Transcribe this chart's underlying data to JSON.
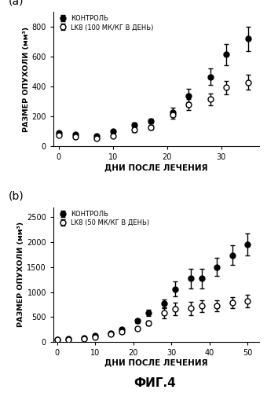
{
  "panel_a": {
    "label": "(a)",
    "control": {
      "x": [
        0,
        3,
        7,
        10,
        14,
        17,
        21,
        24,
        28,
        31,
        35
      ],
      "y": [
        90,
        80,
        70,
        100,
        145,
        170,
        230,
        340,
        465,
        615,
        720
      ],
      "yerr": [
        10,
        8,
        8,
        12,
        15,
        18,
        30,
        45,
        55,
        70,
        80
      ],
      "label": "КОНТРОЛЬ"
    },
    "lk8": {
      "x": [
        0,
        3,
        7,
        10,
        14,
        17,
        21,
        24,
        28,
        31,
        35
      ],
      "y": [
        75,
        65,
        55,
        70,
        110,
        130,
        210,
        280,
        315,
        395,
        430
      ],
      "yerr": [
        8,
        8,
        7,
        10,
        12,
        15,
        25,
        35,
        40,
        45,
        50
      ],
      "label": "LK8 (100 МК/КГ В ДЕНЬ)"
    },
    "ylabel": "РАЗМЕР ОПУХОЛИ (мм³)",
    "xlabel": "ДНИ ПОСЛЕ ЛЕЧЕНИЯ",
    "ylim": [
      0,
      900
    ],
    "xlim": [
      -1,
      37
    ],
    "yticks": [
      0,
      200,
      400,
      600,
      800
    ],
    "xticks": [
      0,
      10,
      20,
      30
    ]
  },
  "panel_b": {
    "label": "(b)",
    "control": {
      "x": [
        0,
        3,
        7,
        10,
        14,
        17,
        21,
        24,
        28,
        31,
        35,
        38,
        42,
        46,
        50
      ],
      "y": [
        50,
        60,
        80,
        120,
        180,
        250,
        420,
        580,
        770,
        1060,
        1270,
        1270,
        1500,
        1740,
        1960
      ],
      "yerr": [
        10,
        10,
        12,
        15,
        20,
        25,
        40,
        60,
        80,
        150,
        200,
        200,
        180,
        200,
        220
      ],
      "label": "КОНТРОЛЬ"
    },
    "lk8": {
      "x": [
        0,
        3,
        7,
        10,
        14,
        17,
        21,
        24,
        28,
        31,
        35,
        38,
        42,
        46,
        50
      ],
      "y": [
        45,
        55,
        70,
        100,
        150,
        200,
        270,
        380,
        580,
        660,
        670,
        720,
        730,
        790,
        820
      ],
      "yerr": [
        8,
        8,
        10,
        12,
        18,
        22,
        35,
        50,
        100,
        130,
        130,
        120,
        110,
        110,
        120
      ],
      "label": "LK8 (50 МК/КГ В ДЕНЬ)"
    },
    "ylabel": "РАЗМЕР ОПУХОЛИ (мм³)",
    "xlabel": "ДНИ ПОСЛЕ ЛЕЧЕНИЯ",
    "ylim": [
      0,
      2700
    ],
    "xlim": [
      -1,
      53
    ],
    "yticks": [
      0,
      500,
      1000,
      1500,
      2000,
      2500
    ],
    "xticks": [
      0,
      10,
      20,
      30,
      40,
      50
    ]
  },
  "fig_label": "ФИГ.4",
  "background_color": "#ffffff",
  "markersize": 5,
  "linewidth": 1.5,
  "capsize": 2,
  "elinewidth": 1.0
}
